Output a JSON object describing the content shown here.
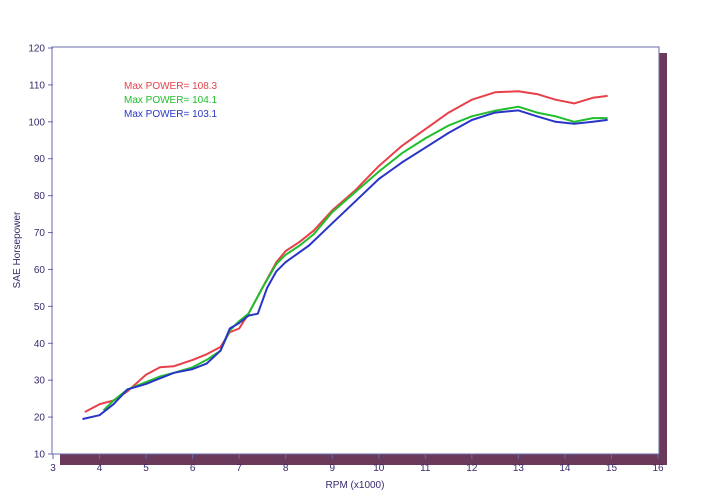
{
  "chart_data": {
    "type": "line",
    "title": "",
    "xlabel": "RPM (x1000)",
    "ylabel": "SAE Horsepower",
    "xlim": [
      3,
      16
    ],
    "ylim": [
      10,
      120
    ],
    "xticks": [
      "3",
      "4",
      "5",
      "6",
      "7",
      "8",
      "9",
      "10",
      "11",
      "12",
      "13",
      "14",
      "15",
      "16"
    ],
    "yticks": [
      "10",
      "20",
      "30",
      "40",
      "50",
      "60",
      "70",
      "80",
      "90",
      "100",
      "110",
      "120"
    ],
    "grid": false,
    "legend_position": "top-left",
    "series": [
      {
        "label": "Max POWER= 108.3",
        "color": "#e8404a",
        "x": [
          3.7,
          4.0,
          4.3,
          4.6,
          5.0,
          5.3,
          5.6,
          6.0,
          6.3,
          6.6,
          6.8,
          7.0,
          7.2,
          7.5,
          7.8,
          8.0,
          8.3,
          8.6,
          9.0,
          9.5,
          10.0,
          10.5,
          11.0,
          11.5,
          12.0,
          12.5,
          13.0,
          13.4,
          13.8,
          14.2,
          14.6,
          14.9
        ],
        "y": [
          21.5,
          23.5,
          24.5,
          27.0,
          31.5,
          33.5,
          33.8,
          35.5,
          37.0,
          39.0,
          43.0,
          44.0,
          48.0,
          55.0,
          62.0,
          65.0,
          67.5,
          70.5,
          76.0,
          81.5,
          88.0,
          93.5,
          98.0,
          102.5,
          106.0,
          108.0,
          108.3,
          107.5,
          106.0,
          105.0,
          106.5,
          107.0
        ]
      },
      {
        "label": "Max POWER= 104.1",
        "color": "#1fbe2a",
        "x": [
          4.1,
          4.3,
          4.6,
          5.0,
          5.3,
          5.6,
          6.0,
          6.3,
          6.6,
          6.8,
          7.0,
          7.2,
          7.5,
          7.8,
          8.0,
          8.3,
          8.6,
          9.0,
          9.5,
          10.0,
          10.5,
          11.0,
          11.5,
          12.0,
          12.5,
          13.0,
          13.4,
          13.8,
          14.2,
          14.6,
          14.9
        ],
        "y": [
          22.0,
          24.5,
          27.5,
          29.5,
          31.0,
          32.0,
          33.5,
          35.5,
          38.0,
          43.5,
          46.0,
          48.0,
          55.0,
          61.5,
          64.0,
          66.5,
          69.5,
          75.5,
          81.0,
          86.5,
          91.5,
          95.5,
          99.0,
          101.5,
          103.0,
          104.1,
          102.5,
          101.5,
          100.0,
          101.0,
          101.0
        ]
      },
      {
        "label": "Max POWER= 103.1",
        "color": "#2a35c8",
        "x": [
          3.65,
          4.0,
          4.3,
          4.6,
          5.0,
          5.3,
          5.6,
          6.0,
          6.3,
          6.6,
          6.8,
          7.0,
          7.2,
          7.4,
          7.6,
          7.8,
          8.0,
          8.5,
          9.0,
          9.5,
          10.0,
          10.5,
          11.0,
          11.5,
          12.0,
          12.5,
          13.0,
          13.4,
          13.8,
          14.2,
          14.6,
          14.9
        ],
        "y": [
          19.5,
          20.5,
          23.5,
          27.5,
          29.0,
          30.5,
          32.0,
          33.0,
          34.5,
          38.0,
          44.0,
          45.5,
          47.5,
          48.0,
          55.0,
          59.5,
          62.0,
          66.5,
          72.5,
          78.5,
          84.5,
          89.0,
          93.0,
          97.0,
          100.5,
          102.5,
          103.1,
          101.5,
          100.0,
          99.5,
          100.0,
          100.5
        ]
      }
    ]
  }
}
